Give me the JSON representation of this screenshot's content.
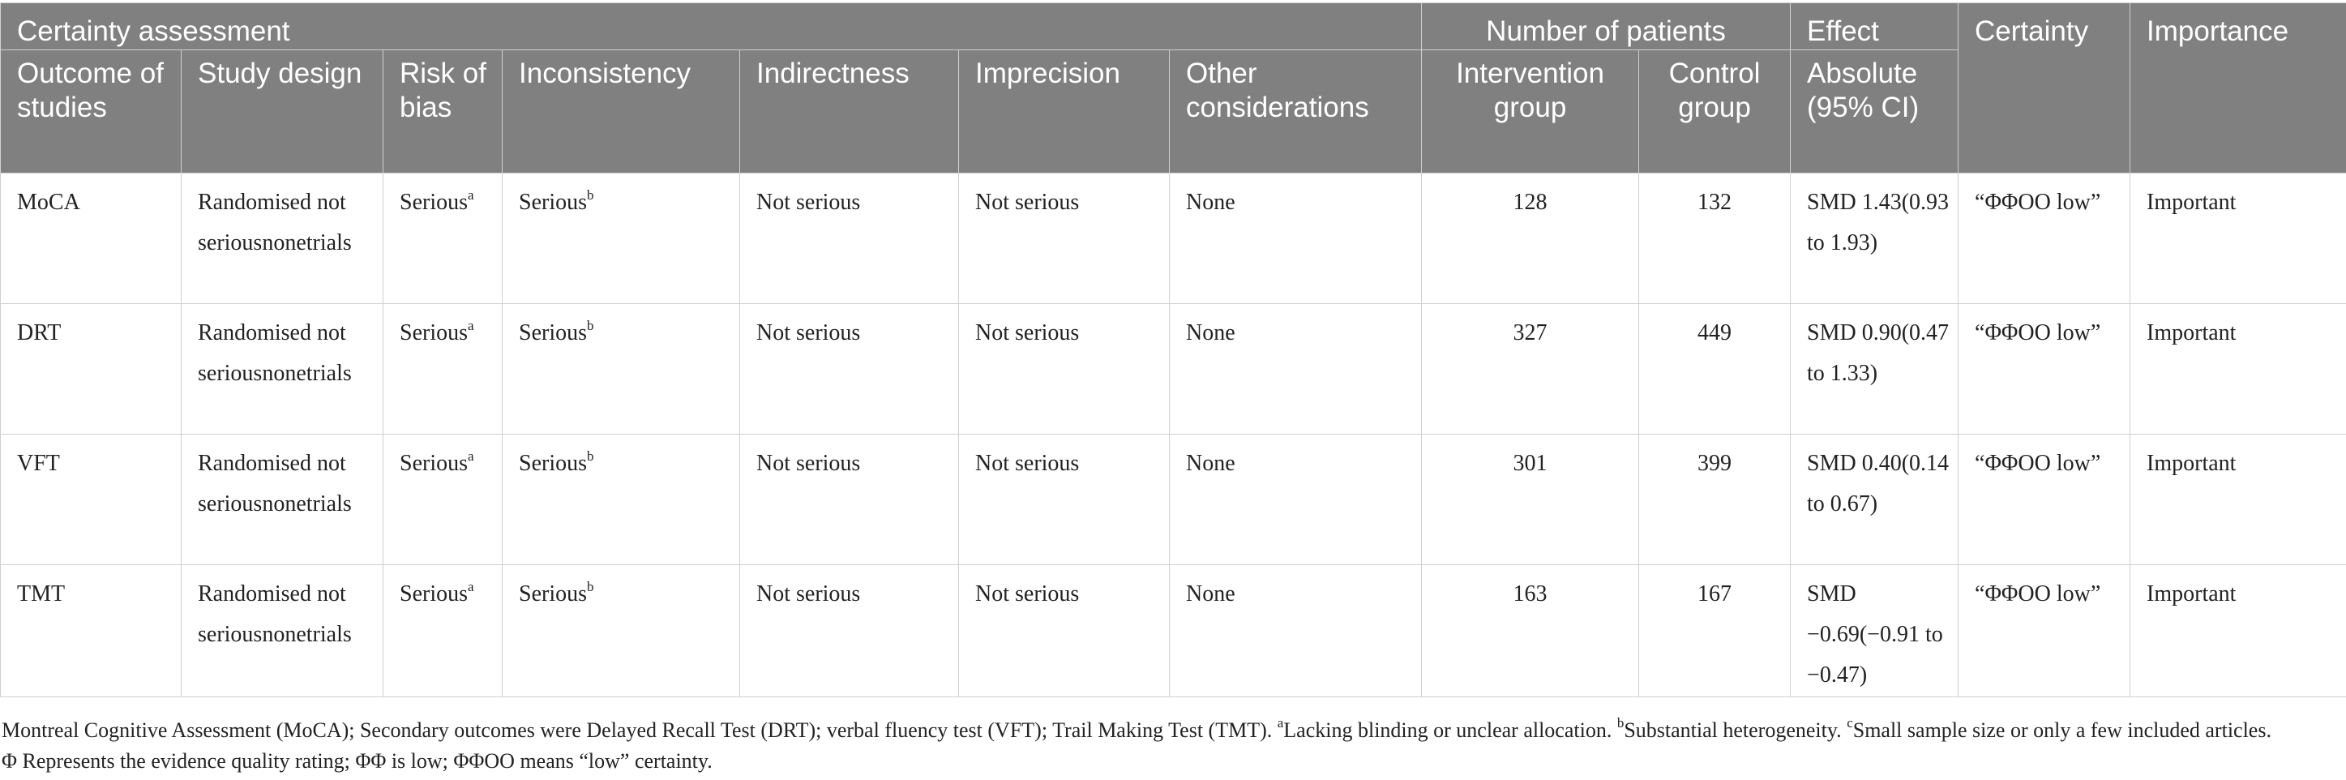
{
  "table": {
    "group_headers": {
      "certainty_assessment": "Certainty assessment",
      "number_of_patients": "Number of patients",
      "effect": "Effect",
      "certainty": "Certainty",
      "importance": "Importance"
    },
    "column_headers": {
      "outcome": "Outcome of studies",
      "study_design": "Study design",
      "risk_of_bias": "Risk of bias",
      "inconsistency": "Inconsistency",
      "indirectness": "Indirectness",
      "imprecision": "Imprecision",
      "other": "Other considerations",
      "intervention": "Intervention group",
      "control": "Control group",
      "absolute": "Absolute (95% CI)"
    },
    "rows": [
      {
        "outcome": "MoCA",
        "design": "Randomised not seriousnonetrials",
        "risk": "Serious",
        "risk_mark": "a",
        "inconsistency": "Serious",
        "inconsistency_mark": "b",
        "indirectness": "Not serious",
        "imprecision": "Not serious",
        "other": "None",
        "intervention": "128",
        "control": "132",
        "effect": "SMD 1.43(0.93 to 1.93)",
        "certainty": "“ΦΦOO low”",
        "importance": "Important"
      },
      {
        "outcome": "DRT",
        "design": "Randomised not seriousnonetrials",
        "risk": "Serious",
        "risk_mark": "a",
        "inconsistency": "Serious",
        "inconsistency_mark": "b",
        "indirectness": "Not serious",
        "imprecision": "Not serious",
        "other": "None",
        "intervention": "327",
        "control": "449",
        "effect": "SMD 0.90(0.47 to 1.33)",
        "certainty": "“ΦΦOO low”",
        "importance": "Important"
      },
      {
        "outcome": "VFT",
        "design": "Randomised not seriousnonetrials",
        "risk": "Serious",
        "risk_mark": "a",
        "inconsistency": "Serious",
        "inconsistency_mark": "b",
        "indirectness": "Not serious",
        "imprecision": "Not serious",
        "other": "None",
        "intervention": "301",
        "control": "399",
        "effect": "SMD 0.40(0.14 to 0.67)",
        "certainty": "“ΦΦOO low”",
        "importance": "Important"
      },
      {
        "outcome": "TMT",
        "design": "Randomised not seriousnonetrials",
        "risk": "Serious",
        "risk_mark": "a",
        "inconsistency": "Serious",
        "inconsistency_mark": "b",
        "indirectness": "Not serious",
        "imprecision": "Not serious",
        "other": "None",
        "intervention": "163",
        "control": "167",
        "effect": "SMD −0.69(−0.91 to −0.47)",
        "certainty": "“ΦΦOO low”",
        "importance": "Important"
      }
    ]
  },
  "footnote": {
    "line1_start": "Montreal Cognitive Assessment (MoCA); Secondary outcomes were Delayed Recall Test (DRT); verbal fluency test (VFT); Trail Making Test (TMT). ",
    "mark_a": "a",
    "note_a": "Lacking blinding or unclear allocation. ",
    "mark_b": "b",
    "note_b": "Substantial heterogeneity. ",
    "mark_c": "c",
    "note_c": "Small sample size or only a few included articles.",
    "line2": "Φ Represents the evidence quality rating; ΦΦ is low; ΦΦOO means “low” certainty."
  }
}
